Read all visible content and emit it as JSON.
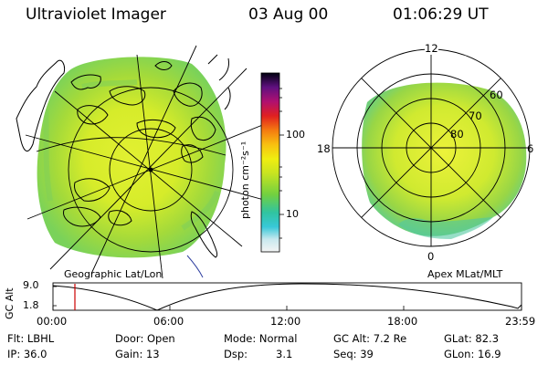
{
  "header": {
    "instrument": "Ultraviolet Imager",
    "date": "03 Aug 00",
    "time": "01:06:29 UT"
  },
  "colorbar": {
    "unit_label": "photon cm⁻²s⁻¹",
    "tick_100": "100",
    "tick_10": "10",
    "scale": "log"
  },
  "left_map": {
    "caption": "Geographic Lat/Lon"
  },
  "right_map": {
    "caption": "Apex MLat/MLT",
    "mlt_top": "12",
    "mlt_left": "18",
    "mlt_right": "6",
    "mlt_bottom": "0",
    "lat_60": "60",
    "lat_70": "70",
    "lat_80": "80"
  },
  "altitude_plot": {
    "ylabel": "GC Alt",
    "ytick_top": "9.0",
    "ytick_bottom": "1.8",
    "xticks": [
      "00:00",
      "06:00",
      "12:00",
      "18:00",
      "23:59"
    ],
    "marker_color": "#cc0000"
  },
  "status": {
    "flt": "Flt: LBHL",
    "ip": "IP: 36.0",
    "door": "Door: Open",
    "gain": "Gain: 13",
    "mode": "Mode: Normal",
    "dsp_label": "Dsp:",
    "dsp_value": "3.1",
    "gc_alt": "GC Alt: 7.2 Re",
    "seq": "Seq: 39",
    "glat": "GLat:  82.3",
    "glon": "GLon:  16.9"
  }
}
